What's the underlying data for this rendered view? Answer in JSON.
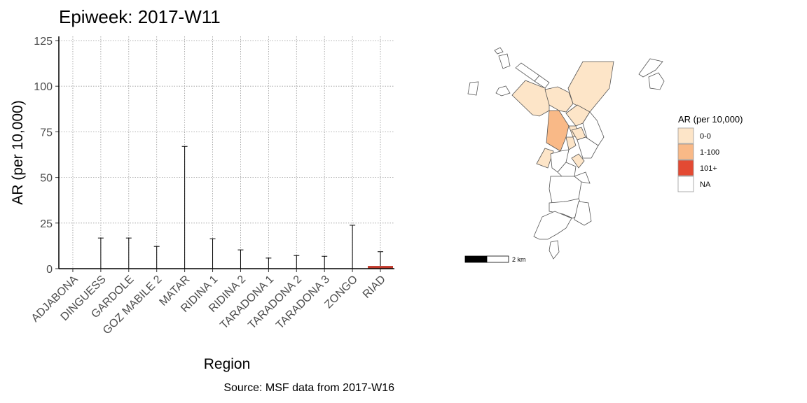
{
  "chart_data": {
    "type": "bar",
    "title": "Epiweek: 2017-W11",
    "xlabel": "Region",
    "ylabel": "AR (per 10,000)",
    "caption": "Source: MSF data from 2017-W16",
    "ylim": [
      0,
      125
    ],
    "yticks": [
      0,
      25,
      50,
      75,
      100,
      125
    ],
    "grid": true,
    "categories": [
      "ADJABONA",
      "DINGUESS",
      "GARDOLE",
      "GOZ MABILE 2",
      "MATAR",
      "RIDINA 1",
      "RIDINA 2",
      "TARADONA 1",
      "TARADONA 2",
      "TARADONA 3",
      "ZONGO",
      "RIAD"
    ],
    "values": [
      0,
      0,
      0,
      0,
      0,
      0,
      0,
      0,
      0,
      0,
      0,
      1.5
    ],
    "error_upper": [
      0,
      16.8,
      16.8,
      12.2,
      67,
      16.4,
      10.3,
      5.8,
      7.2,
      6.8,
      23.8,
      9.3
    ],
    "bar_color": "#c0392b"
  },
  "map": {
    "legend": {
      "title": "AR (per 10,000)",
      "placement": "right",
      "items": [
        {
          "label": "0-0",
          "color": "#fde5c8"
        },
        {
          "label": "1-100",
          "color": "#f9b987"
        },
        {
          "label": "101+",
          "color": "#e34a33"
        },
        {
          "label": "NA",
          "color": "#ffffff"
        }
      ]
    },
    "scale_label": "2 km"
  }
}
